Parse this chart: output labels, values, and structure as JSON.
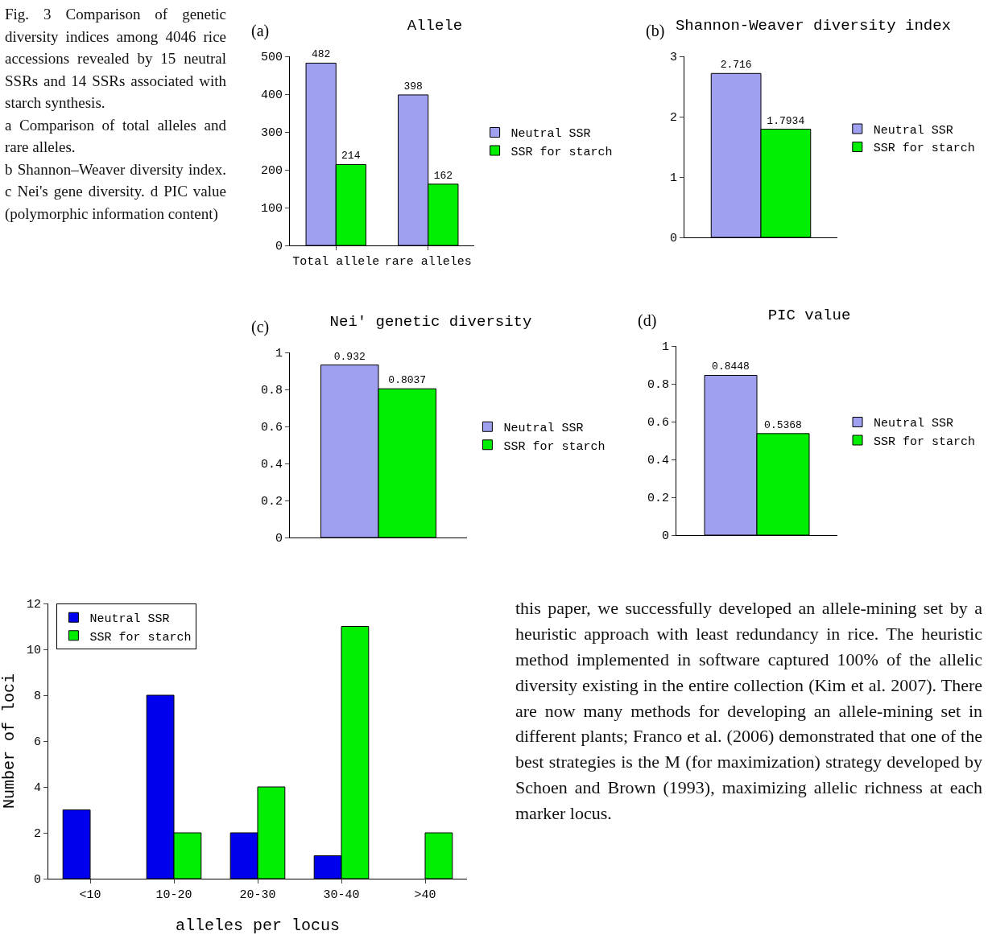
{
  "chart_data": [
    {
      "type": "other",
      "annotations": [
        "Fig. 3 Comparison of genetic diversity indices among 4046 rice accessions revealed by 15 neutral SSRs and 14 SSRs associated with starch synthesis.",
        "a Comparison of total alleles and rare alleles.",
        "b Shannon–Weaver diversity index. c Nei's gene diversity. d PIC value (polymorphic information content)"
      ]
    },
    {
      "type": "bar",
      "title": "Allele",
      "annotations": [
        "(a)"
      ],
      "categories": [
        "Total allele",
        "rare alleles"
      ],
      "series": [
        {
          "name": "Neutral SSR",
          "color": "#a0a0f0",
          "values": [
            482,
            398
          ]
        },
        {
          "name": "SSR for starch",
          "color": "#00ee00",
          "values": [
            214,
            162
          ]
        }
      ],
      "ylim": [
        0,
        500
      ],
      "yticks": [
        0,
        100,
        200,
        300,
        400,
        500
      ],
      "grid": false,
      "legend": "right",
      "data_labels": true
    },
    {
      "type": "bar",
      "title": "Shannon-Weaver diversity index",
      "annotations": [
        "(b)"
      ],
      "categories": [
        null
      ],
      "series": [
        {
          "name": "Neutral SSR",
          "color": "#a0a0f0",
          "values": [
            2.716
          ]
        },
        {
          "name": "SSR for starch",
          "color": "#00ee00",
          "values": [
            1.7934
          ]
        }
      ],
      "ylim": [
        0,
        3
      ],
      "yticks": [
        0,
        1,
        2,
        3
      ],
      "grid": false,
      "legend": "right",
      "data_labels": true,
      "tick_labels": "y"
    },
    {
      "type": "bar",
      "title": "Nei' genetic diversity",
      "annotations": [
        "(c)"
      ],
      "categories": [
        null
      ],
      "series": [
        {
          "name": "Neutral SSR",
          "color": "#a0a0f0",
          "values": [
            0.932
          ]
        },
        {
          "name": "SSR for starch",
          "color": "#00ee00",
          "values": [
            0.8037
          ]
        }
      ],
      "ylim": [
        0,
        1
      ],
      "yticks": [
        0,
        0.2,
        0.4,
        0.6,
        0.8,
        1
      ],
      "grid": false,
      "legend": "right",
      "data_labels": true,
      "tick_labels": "y"
    },
    {
      "type": "bar",
      "title": "PIC value",
      "annotations": [
        "(d)"
      ],
      "categories": [
        null
      ],
      "series": [
        {
          "name": "Neutral SSR",
          "color": "#a0a0f0",
          "values": [
            0.8448
          ]
        },
        {
          "name": "SSR for starch",
          "color": "#00ee00",
          "values": [
            0.5368
          ]
        }
      ],
      "ylim": [
        0,
        1
      ],
      "yticks": [
        0,
        0.2,
        0.4,
        0.6,
        0.8,
        1
      ],
      "grid": false,
      "legend": "right",
      "data_labels": true,
      "tick_labels": "y"
    },
    {
      "type": "bar",
      "xlabel": "alleles per locus",
      "ylabel": "Number of loci",
      "categories": [
        "<10",
        "10-20",
        "20-30",
        "30-40",
        ">40"
      ],
      "series": [
        {
          "name": "Neutral SSR",
          "color": "#0000ee",
          "values": [
            3,
            8,
            2,
            1,
            null
          ]
        },
        {
          "name": "SSR for starch",
          "color": "#00ee00",
          "values": [
            null,
            2,
            4,
            11,
            2
          ]
        }
      ],
      "ylim": [
        0,
        12
      ],
      "yticks": [
        0,
        2,
        4,
        6,
        8,
        10,
        12
      ],
      "grid": false,
      "legend": "top left"
    },
    {
      "type": "other",
      "annotations": [
        "this paper, we successfully developed an allele-mining set by a heuristic approach with least redundancy in rice. The heuristic method implemented in software captured 100% of the allelic diversity existing in the entire collection (Kim et al. 2007). There are now many methods for developing an allele-mining set in different plants; Franco et al. (2006) demonstrated that one of the best strategies is the M (for maximization) strategy developed by Schoen and Brown (1993), maximizing allelic richness at each marker locus."
      ]
    }
  ]
}
